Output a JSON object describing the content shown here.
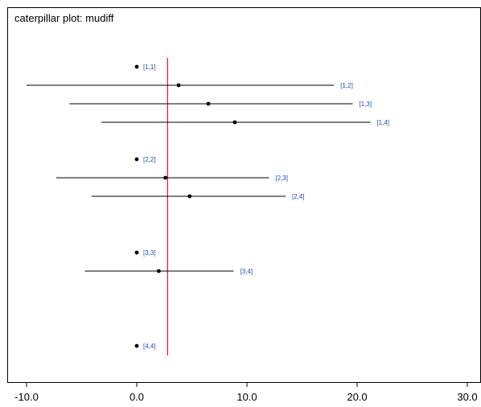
{
  "chart_data": {
    "type": "scatter",
    "title": "caterpillar plot: mudiff",
    "xlabel": "",
    "ylabel": "",
    "xlim": [
      -12.2,
      30.6
    ],
    "xticks": [
      -10,
      0,
      10,
      20,
      30
    ],
    "xtick_labels": [
      "-10.0",
      "0.0",
      "10.0",
      "20.0",
      "30.0"
    ],
    "reference_line": {
      "x": 2.8,
      "color": "#e31a1c"
    },
    "grid": false,
    "point_color": "#000000",
    "label_color": "#1f4bb4",
    "rows": [
      {
        "label": "[1,1]",
        "mean": 0.0,
        "lower": 0.0,
        "upper": 0.0
      },
      {
        "label": "[1,2]",
        "mean": 3.8,
        "lower": -10.0,
        "upper": 17.9
      },
      {
        "label": "[1,3]",
        "mean": 6.5,
        "lower": -6.1,
        "upper": 19.6
      },
      {
        "label": "[1,4]",
        "mean": 8.9,
        "lower": -3.2,
        "upper": 21.2
      },
      {
        "label": "[2,2]",
        "mean": 0.0,
        "lower": 0.0,
        "upper": 0.0
      },
      {
        "label": "[2,3]",
        "mean": 2.6,
        "lower": -7.3,
        "upper": 12.0
      },
      {
        "label": "[2,4]",
        "mean": 4.8,
        "lower": -4.1,
        "upper": 13.5
      },
      {
        "label": "[3,3]",
        "mean": 0.0,
        "lower": 0.0,
        "upper": 0.0
      },
      {
        "label": "[3,4]",
        "mean": 2.0,
        "lower": -4.7,
        "upper": 8.8
      },
      {
        "label": "[4,4]",
        "mean": 0.0,
        "lower": 0.0,
        "upper": 0.0
      }
    ]
  }
}
